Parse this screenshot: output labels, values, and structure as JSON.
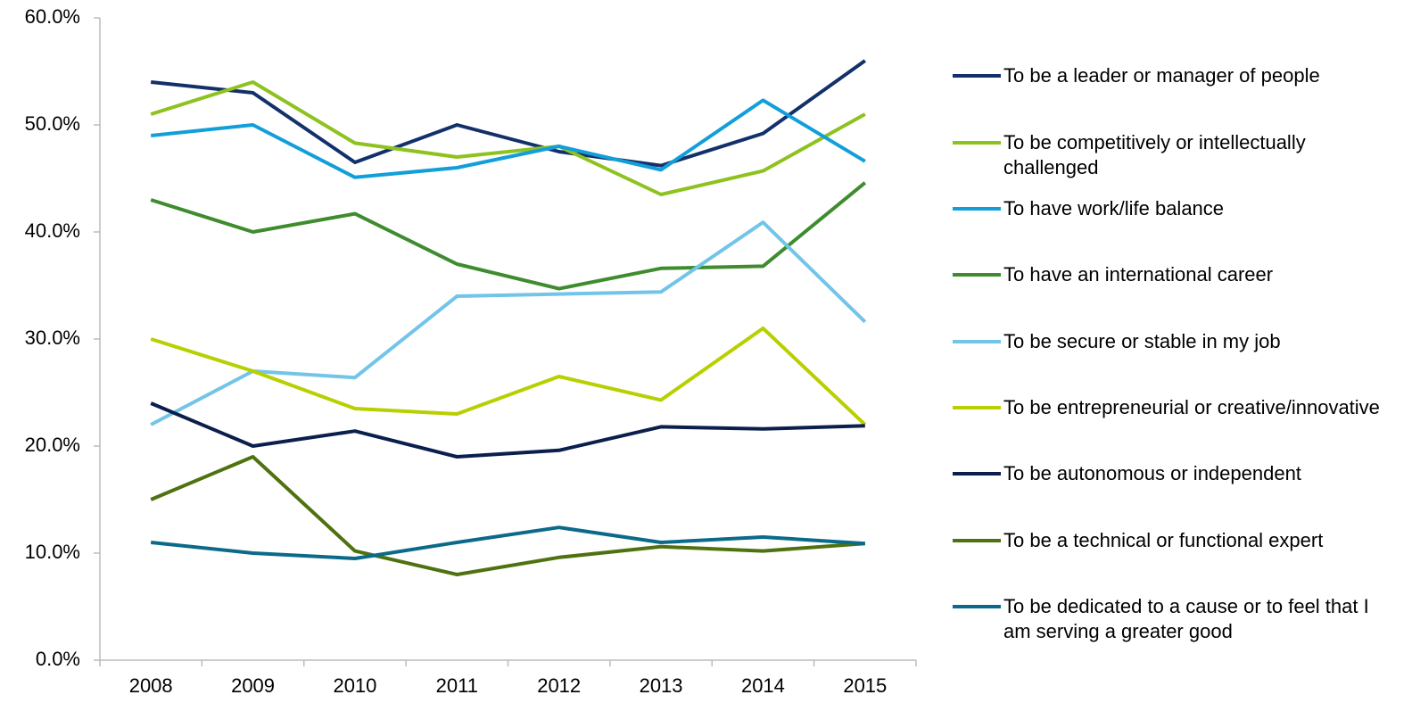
{
  "chart_data": {
    "type": "line",
    "categories": [
      "2008",
      "2009",
      "2010",
      "2011",
      "2012",
      "2013",
      "2014",
      "2015"
    ],
    "ylim": [
      0,
      60
    ],
    "yticks": [
      {
        "value": 0,
        "label": "0.0%"
      },
      {
        "value": 10,
        "label": "10.0%"
      },
      {
        "value": 20,
        "label": "20.0%"
      },
      {
        "value": 30,
        "label": "30.0%"
      },
      {
        "value": 40,
        "label": "40.0%"
      },
      {
        "value": 50,
        "label": "50.0%"
      },
      {
        "value": 60,
        "label": "60.0%"
      }
    ],
    "grid": false,
    "legend": "right",
    "series": [
      {
        "name": "To be a leader or manager of people",
        "color": "#13306b",
        "values": [
          54,
          53,
          46.5,
          50,
          47.5,
          46.2,
          49.2,
          56
        ]
      },
      {
        "name": "To be competitively or intellectually challenged",
        "color": "#8dc21f",
        "values": [
          51,
          54,
          48.3,
          47,
          48,
          43.5,
          45.7,
          51
        ]
      },
      {
        "name": "To have work/life balance",
        "color": "#129fd9",
        "values": [
          49,
          50,
          45.1,
          46,
          48,
          45.8,
          52.3,
          46.6
        ]
      },
      {
        "name": "To have an international career",
        "color": "#3f8c2f",
        "values": [
          43,
          40,
          41.7,
          37,
          34.7,
          36.6,
          36.8,
          44.6
        ]
      },
      {
        "name": "To be secure or stable in my job",
        "color": "#72c5e8",
        "values": [
          22,
          27,
          26.4,
          34,
          34.2,
          34.4,
          40.9,
          31.6
        ]
      },
      {
        "name": "To be entrepreneurial or creative/innovative",
        "color": "#b8cf00",
        "values": [
          30,
          27,
          23.5,
          23,
          26.5,
          24.3,
          31,
          22
        ]
      },
      {
        "name": "To be autonomous or independent",
        "color": "#0b1f4d",
        "values": [
          24,
          20,
          21.4,
          19,
          19.6,
          21.8,
          21.6,
          21.9
        ]
      },
      {
        "name": "To be a technical or functional expert",
        "color": "#4e7210",
        "values": [
          15,
          19,
          10.2,
          8,
          9.6,
          10.6,
          10.2,
          10.9
        ]
      },
      {
        "name": "To be dedicated to a cause or to feel that I am serving a greater good",
        "color": "#0b6a8a",
        "values": [
          11,
          10,
          9.5,
          11,
          12.4,
          11,
          11.5,
          10.9
        ]
      }
    ]
  }
}
